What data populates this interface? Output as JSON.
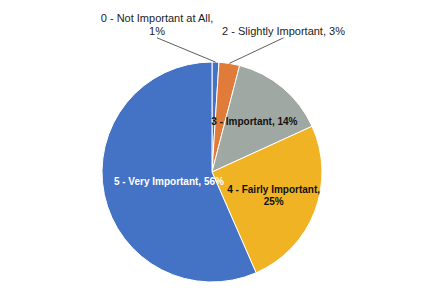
{
  "chart_data": {
    "type": "pie",
    "categories": [
      "0 - Not Important at All,\n1%",
      "2 - Slightly Important, 3%",
      "3 - Important, 14%",
      "4 - Fairly Important,\n25%",
      "5 - Very Important, 56%"
    ],
    "values": [
      1,
      3,
      14,
      25,
      56
    ],
    "colors": [
      "#4472C4",
      "#E07B39",
      "#9FA8A3",
      "#F0B323",
      "#4472C4"
    ]
  }
}
